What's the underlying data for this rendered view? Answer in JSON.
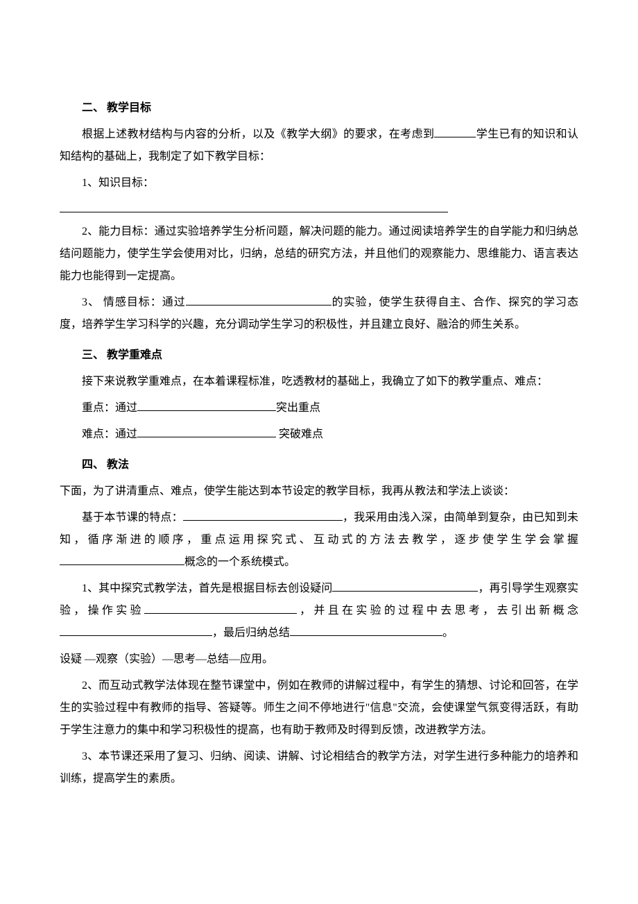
{
  "section2": {
    "title": "二、 教学目标",
    "intro_a": "根据上述教材结构与内容的分析，以及《教学大纲》的要求，在考虑到",
    "intro_b": "学生已有的知识和认知结构的基础上，我制定了如下教学目标：",
    "item1_label": "1、知识目标：",
    "item2": "2、能力目标：通过实验培养学生分析问题，解决问题的能力。通过阅读培养学生的自学能力和归纳总结问题能力，使学生学会使用对比，归纳，总结的研究方法，并且他们的观察能力、思维能力、语言表达能力也能得到一定提高。",
    "item3_a": "3、 情感目标：通过",
    "item3_b": "的实验，使学生获得自主、合作、探究的学习态度，培养学生学习科学的兴趣，充分调动学生学习的积极性，并且建立良好、融洽的师生关系。"
  },
  "section3": {
    "title": "三、 教学重难点",
    "intro": "接下来说教学重难点，在本着课程标准，吃透教材的基础上，我确立了如下的教学重点、难点：",
    "row1_a": "重点：通过",
    "row1_b": "突出重点",
    "row2_a": "难点：通过",
    "row2_b": " 突破难点"
  },
  "section4": {
    "title": "四、 教法",
    "intro": "下面，为了讲清重点、难点，使学生能达到本节设定的教学目标，我再从教法和学法上谈谈：",
    "p1_a": "基于本节课的特点：",
    "p1_b": "，我采用由浅入深，由简单到复杂，由已知到未知，循序渐进的顺序，重点运用探究式、互动式的方法去教学，逐步使学生学会掌握",
    "p1_c": "概念的一个系统模式。",
    "p2_a": "1、其中探究式教学法，首先是根据目标去创设疑问",
    "p2_b": "，再引导学生观察实验，操作实验",
    "p2_c": "，并且在实验的过程中去思考，去引出新概念",
    "p2_d": "，最后归纳总结",
    "p2_e": "。",
    "p2_line2": "设疑 —观察（实验）—思考—总结—应用。",
    "p3": "2、而互动式教学法体现在整节课堂中，例如在教师的讲解过程中，有学生的猜想、讨论和回答，在学生的实验过程中有教师的指导、答疑等。师生之间不停地进行\"信息\"交流，会使课堂气氛变得活跃，有助于学生注意力的集中和学习积极性的提高，也有助于教师及时得到反馈，改进教学方法。",
    "p4": "3、本节课还采用了复习、归纳、阅读、讲解、讨论相结合的教学方法，对学生进行多种能力的培养和训练，提高学生的素质。"
  },
  "blanks": {
    "intro_w": 60,
    "item3_w": 210,
    "row_w": 200,
    "p1a_w": 230,
    "p1b_w": 180,
    "p2a_w": 210,
    "p2b_w": 220,
    "p2c_w": 220,
    "p2d_w": 220
  }
}
